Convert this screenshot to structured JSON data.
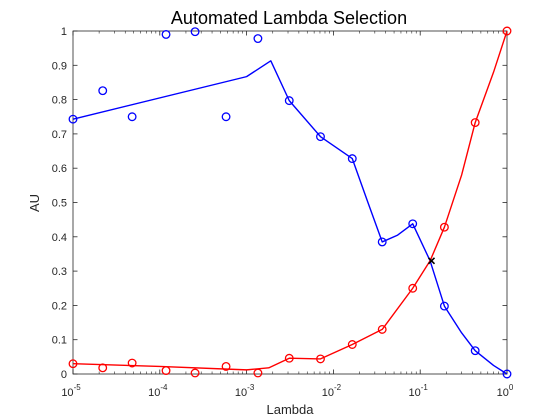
{
  "chart_data": {
    "type": "line",
    "title": "Automated Lambda Selection",
    "xlabel": "Lambda",
    "ylabel": "AU",
    "x_scale": "log",
    "xlim": [
      1e-05,
      1
    ],
    "ylim": [
      0,
      1
    ],
    "grid": false,
    "x_ticks": [
      {
        "value": 1e-05,
        "base": "10",
        "exp": "-5"
      },
      {
        "value": 0.0001,
        "base": "10",
        "exp": "-4"
      },
      {
        "value": 0.001,
        "base": "10",
        "exp": "-3"
      },
      {
        "value": 0.01,
        "base": "10",
        "exp": "-2"
      },
      {
        "value": 0.1,
        "base": "10",
        "exp": "-1"
      },
      {
        "value": 1,
        "base": "10",
        "exp": "0"
      }
    ],
    "y_ticks": [
      {
        "value": 0,
        "label": "0"
      },
      {
        "value": 0.1,
        "label": "0.1"
      },
      {
        "value": 0.2,
        "label": "0.2"
      },
      {
        "value": 0.3,
        "label": "0.3"
      },
      {
        "value": 0.4,
        "label": "0.4"
      },
      {
        "value": 0.5,
        "label": "0.5"
      },
      {
        "value": 0.6,
        "label": "0.6"
      },
      {
        "value": 0.7,
        "label": "0.7"
      },
      {
        "value": 0.8,
        "label": "0.8"
      },
      {
        "value": 0.9,
        "label": "0.9"
      },
      {
        "value": 1,
        "label": "1"
      }
    ],
    "series": [
      {
        "color": "#0000ff",
        "markers": [
          {
            "x": 1e-05,
            "y": 0.743
          },
          {
            "x": 2.2e-05,
            "y": 0.826
          },
          {
            "x": 4.8e-05,
            "y": 0.75
          },
          {
            "x": 0.000118,
            "y": 0.99
          },
          {
            "x": 0.000255,
            "y": 0.998
          },
          {
            "x": 0.00058,
            "y": 0.75
          },
          {
            "x": 0.00135,
            "y": 0.978
          },
          {
            "x": 0.0031,
            "y": 0.797
          },
          {
            "x": 0.0071,
            "y": 0.692
          },
          {
            "x": 0.0165,
            "y": 0.628
          },
          {
            "x": 0.0365,
            "y": 0.385
          },
          {
            "x": 0.082,
            "y": 0.438
          },
          {
            "x": 0.19,
            "y": 0.198
          },
          {
            "x": 0.43,
            "y": 0.068
          },
          {
            "x": 1,
            "y": 0
          }
        ],
        "curve": [
          {
            "x": 1e-05,
            "y": 0.743
          },
          {
            "x": 0.001,
            "y": 0.867
          },
          {
            "x": 0.0019,
            "y": 0.913
          },
          {
            "x": 0.0031,
            "y": 0.797
          },
          {
            "x": 0.0071,
            "y": 0.692
          },
          {
            "x": 0.0165,
            "y": 0.628
          },
          {
            "x": 0.025,
            "y": 0.5
          },
          {
            "x": 0.0365,
            "y": 0.385
          },
          {
            "x": 0.055,
            "y": 0.405
          },
          {
            "x": 0.082,
            "y": 0.438
          },
          {
            "x": 0.13,
            "y": 0.33
          },
          {
            "x": 0.19,
            "y": 0.198
          },
          {
            "x": 0.3,
            "y": 0.12
          },
          {
            "x": 0.43,
            "y": 0.068
          },
          {
            "x": 0.7,
            "y": 0.025
          },
          {
            "x": 1,
            "y": 0
          }
        ]
      },
      {
        "color": "#ff0000",
        "markers": [
          {
            "x": 1e-05,
            "y": 0.03
          },
          {
            "x": 2.2e-05,
            "y": 0.018
          },
          {
            "x": 4.8e-05,
            "y": 0.032
          },
          {
            "x": 0.000118,
            "y": 0.01
          },
          {
            "x": 0.000255,
            "y": 0.003
          },
          {
            "x": 0.00058,
            "y": 0.022
          },
          {
            "x": 0.00135,
            "y": 0.003
          },
          {
            "x": 0.0031,
            "y": 0.046
          },
          {
            "x": 0.0071,
            "y": 0.044
          },
          {
            "x": 0.0165,
            "y": 0.086
          },
          {
            "x": 0.0365,
            "y": 0.13
          },
          {
            "x": 0.082,
            "y": 0.25
          },
          {
            "x": 0.19,
            "y": 0.428
          },
          {
            "x": 0.43,
            "y": 0.733
          },
          {
            "x": 1,
            "y": 1
          }
        ],
        "curve": [
          {
            "x": 1e-05,
            "y": 0.03
          },
          {
            "x": 0.0001,
            "y": 0.022
          },
          {
            "x": 0.001,
            "y": 0.012
          },
          {
            "x": 0.0018,
            "y": 0.018
          },
          {
            "x": 0.0031,
            "y": 0.046
          },
          {
            "x": 0.0071,
            "y": 0.044
          },
          {
            "x": 0.0165,
            "y": 0.086
          },
          {
            "x": 0.0365,
            "y": 0.13
          },
          {
            "x": 0.082,
            "y": 0.25
          },
          {
            "x": 0.13,
            "y": 0.33
          },
          {
            "x": 0.19,
            "y": 0.428
          },
          {
            "x": 0.3,
            "y": 0.58
          },
          {
            "x": 0.43,
            "y": 0.733
          },
          {
            "x": 0.7,
            "y": 0.88
          },
          {
            "x": 1,
            "y": 1
          }
        ]
      }
    ],
    "annotations": [
      {
        "marker": "x",
        "color": "#000000",
        "x": 0.135,
        "y": 0.33
      }
    ]
  }
}
